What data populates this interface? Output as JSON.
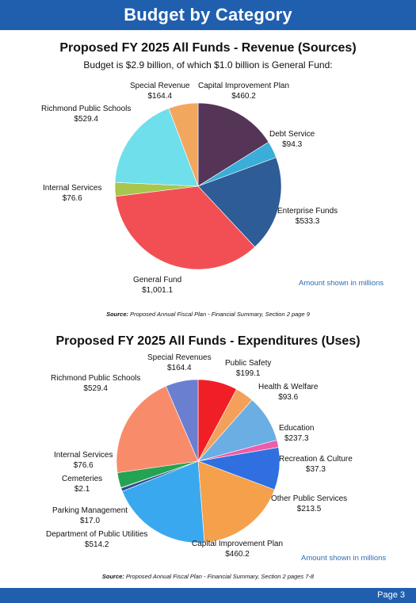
{
  "header": {
    "title": "Budget by Category"
  },
  "footer": {
    "page": "Page 3"
  },
  "revenue": {
    "title": "Proposed FY 2025 All Funds - Revenue (Sources)",
    "subtitle": "Budget is $2.9 billion, of which $1.0 billion is General Fund:",
    "note": "Amount shown in millions",
    "source_label": "Source:",
    "source_text": "Proposed Annual Fiscal Plan - Financial Summary, Section 2 page 9"
  },
  "expend": {
    "title": "Proposed FY 2025 All Funds - Expenditures (Uses)",
    "note": "Amount shown in millions",
    "source_label": "Source:",
    "source_text": "Proposed Annual Fiscal Plan - Financial Summary, Section 2 pages 7-8"
  },
  "chart_data": [
    {
      "type": "pie",
      "title": "Proposed FY 2025 All Funds - Revenue (Sources)",
      "start_angle_deg": 0,
      "slices": [
        {
          "label": "Capital Improvement Plan",
          "value_label": "$460.2",
          "value": 460.2,
          "color": "#553557"
        },
        {
          "label": "Debt Service",
          "value_label": "$94.3",
          "value": 94.3,
          "color": "#3aaed8"
        },
        {
          "label": "Enterprise Funds",
          "value_label": "$533.3",
          "value": 533.3,
          "color": "#2e5c96"
        },
        {
          "label": "General Fund",
          "value_label": "$1,001.1",
          "value": 1001.1,
          "color": "#f24f55"
        },
        {
          "label": "Internal Services",
          "value_label": "$76.6",
          "value": 76.6,
          "color": "#a9c54d"
        },
        {
          "label": "Richmond Public Schools",
          "value_label": "$529.4",
          "value": 529.4,
          "color": "#6fdfeb"
        },
        {
          "label": "Special Revenue",
          "value_label": "$164.4",
          "value": 164.4,
          "color": "#f2a75e"
        }
      ]
    },
    {
      "type": "pie",
      "title": "Proposed FY 2025 All Funds - Expenditures (Uses)",
      "start_angle_deg": 0,
      "slices": [
        {
          "label": "Public Safety",
          "value_label": "$199.1",
          "value": 199.1,
          "color": "#f01f25"
        },
        {
          "label": "Health & Welfare",
          "value_label": "$93.6",
          "value": 93.6,
          "color": "#f4a05a"
        },
        {
          "label": "Education",
          "value_label": "$237.3",
          "value": 237.3,
          "color": "#6aaee3"
        },
        {
          "label": "Recreation & Culture",
          "value_label": "$37.3",
          "value": 37.3,
          "color": "#ee5da8"
        },
        {
          "label": "Other Public Services",
          "value_label": "$213.5",
          "value": 213.5,
          "color": "#2f6fe0"
        },
        {
          "label": "Capital Improvement Plan",
          "value_label": "$460.2",
          "value": 460.2,
          "color": "#f5a04a"
        },
        {
          "label": "Department of Public Utilities",
          "value_label": "$514.2",
          "value": 514.2,
          "color": "#3aa8ef"
        },
        {
          "label": "Parking Management",
          "value_label": "$17.0",
          "value": 17.0,
          "color": "#2a4f99"
        },
        {
          "label": "Cemeteries",
          "value_label": "$2.1",
          "value": 2.1,
          "color": "#3d2b5a"
        },
        {
          "label": "Internal Services",
          "value_label": "$76.6",
          "value": 76.6,
          "color": "#24a352"
        },
        {
          "label": "Richmond Public Schools",
          "value_label": "$529.4",
          "value": 529.4,
          "color": "#f88c6a"
        },
        {
          "label": "Special Revenues",
          "value_label": "$164.4",
          "value": 164.4,
          "color": "#6b7fd1"
        }
      ]
    }
  ]
}
